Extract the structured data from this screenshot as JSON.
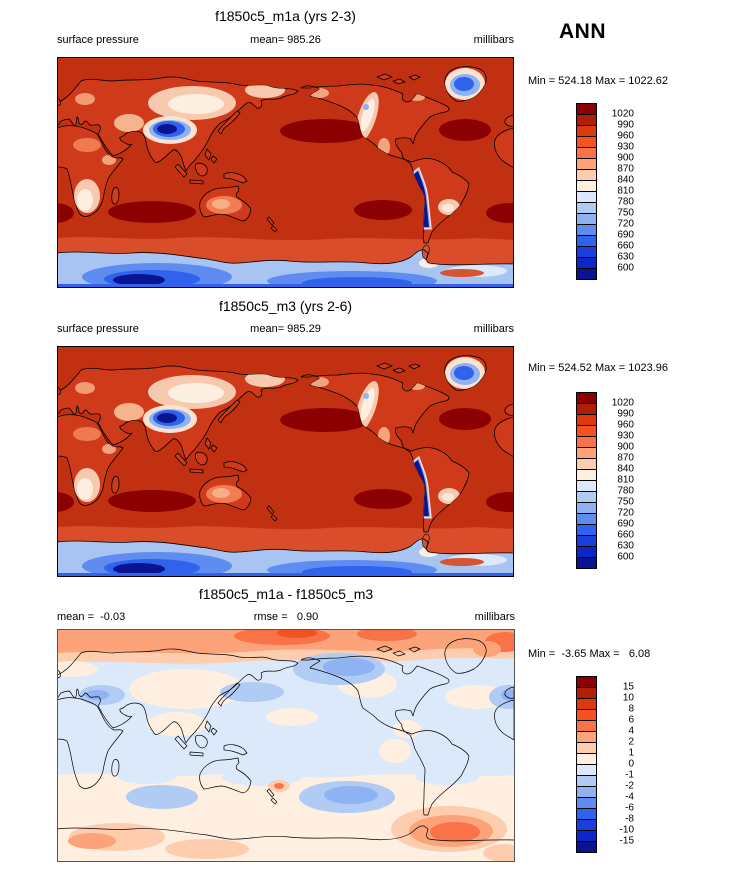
{
  "season_label": "ANN",
  "palette_top_to_bottom": [
    "#8B0000",
    "#B21E04",
    "#DD3810",
    "#F5521F",
    "#FA7348",
    "#FCA379",
    "#FDCDAD",
    "#FEEFE0",
    "#DCE9FB",
    "#B0CCF4",
    "#8FB2F2",
    "#5E8CF0",
    "#2F62ED",
    "#1A3EDD",
    "#0A28C8",
    "#0A1490"
  ],
  "map_colors": {
    "ocean_high_pressure": "#C23012",
    "subtropical_high": "#8B0000",
    "subantarctic_band": "#D94D2A",
    "land_base": "#CF3A1B",
    "diff_background": "#DCE9FB"
  },
  "panels": [
    {
      "title": "f1850c5_m1a (yrs 2-3)",
      "left_label": "surface pressure",
      "center_label": "mean= 985.26",
      "units_label": "millibars",
      "minmax_label": "Min = 524.18 Max = 1022.62",
      "colorbar_labels": [
        "1020",
        "990",
        "960",
        "930",
        "900",
        "870",
        "840",
        "810",
        "780",
        "750",
        "720",
        "690",
        "660",
        "630",
        "600"
      ]
    },
    {
      "title": "f1850c5_m3 (yrs 2-6)",
      "left_label": "surface pressure",
      "center_label": "mean= 985.29",
      "units_label": "millibars",
      "minmax_label": "Min = 524.52 Max = 1023.96",
      "colorbar_labels": [
        "1020",
        "990",
        "960",
        "930",
        "900",
        "870",
        "840",
        "810",
        "780",
        "750",
        "720",
        "690",
        "660",
        "630",
        "600"
      ]
    },
    {
      "title": "f1850c5_m1a - f1850c5_m3",
      "left_label": "mean =  -0.03",
      "center_label": "rmse =   0.90",
      "units_label": "millibars",
      "minmax_label": "Min =  -3.65 Max =   6.08",
      "colorbar_labels": [
        "15",
        "10",
        "8",
        "6",
        "4",
        "2",
        "1",
        "0",
        "-1",
        "-2",
        "-4",
        "-6",
        "-8",
        "-10",
        "-15"
      ]
    }
  ],
  "chart_data": [
    {
      "type": "heatmap",
      "title": "f1850c5_m1a (yrs 2-3)",
      "variable": "surface pressure",
      "units": "millibars",
      "season": "ANN",
      "projection": "global lat-lon map, Pacific-centered",
      "mean": 985.26,
      "min": 524.18,
      "max": 1022.62,
      "contour_levels": [
        600,
        630,
        660,
        690,
        720,
        750,
        780,
        810,
        840,
        870,
        900,
        930,
        960,
        990,
        1020
      ],
      "legend_position": "right"
    },
    {
      "type": "heatmap",
      "title": "f1850c5_m3 (yrs 2-6)",
      "variable": "surface pressure",
      "units": "millibars",
      "season": "ANN",
      "projection": "global lat-lon map, Pacific-centered",
      "mean": 985.29,
      "min": 524.52,
      "max": 1023.96,
      "contour_levels": [
        600,
        630,
        660,
        690,
        720,
        750,
        780,
        810,
        840,
        870,
        900,
        930,
        960,
        990,
        1020
      ],
      "legend_position": "right"
    },
    {
      "type": "heatmap",
      "title": "f1850c5_m1a - f1850c5_m3",
      "units": "millibars",
      "season": "ANN",
      "projection": "global lat-lon map, Pacific-centered",
      "mean": -0.03,
      "rmse": 0.9,
      "min": -3.65,
      "max": 6.08,
      "contour_levels": [
        -15,
        -10,
        -8,
        -6,
        -4,
        -2,
        -1,
        0,
        1,
        2,
        4,
        6,
        8,
        10,
        15
      ],
      "legend_position": "right"
    }
  ]
}
